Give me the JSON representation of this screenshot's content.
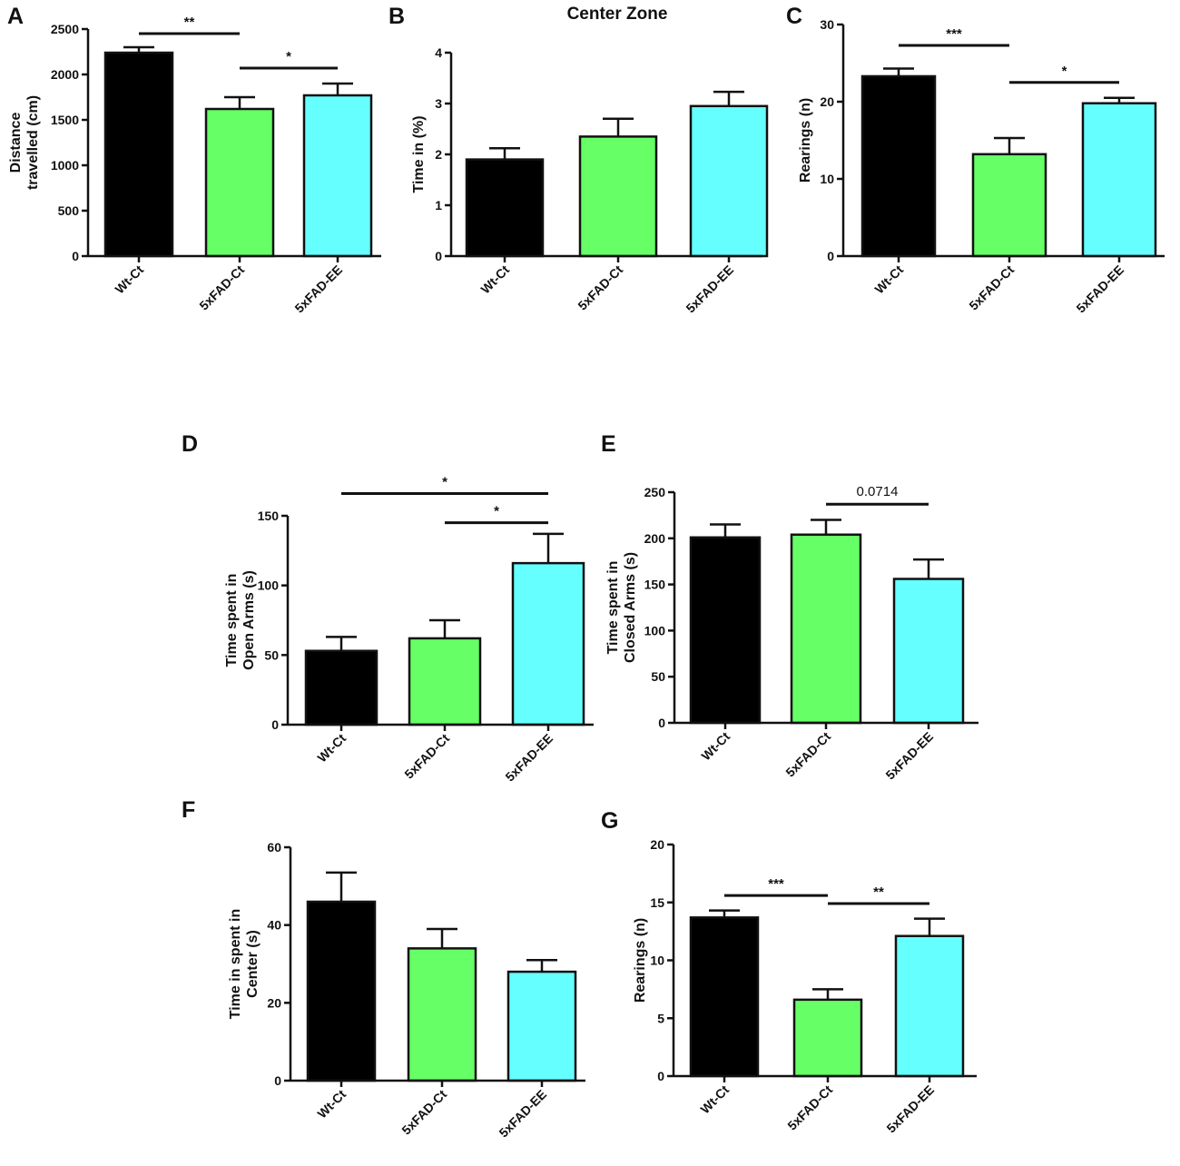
{
  "colors": {
    "Wt-Ct": "#000000",
    "5xFAD-Ct": "#66ff66",
    "5xFAD-EE": "#66ffff",
    "axis": "#111111"
  },
  "chart_data": [
    {
      "panel": "A",
      "type": "bar",
      "title": "",
      "categories": [
        "Wt-Ct",
        "5xFAD-Ct",
        "5xFAD-EE"
      ],
      "values": [
        2240,
        1620,
        1770
      ],
      "errors": [
        60,
        130,
        130
      ],
      "ylabel": [
        "Distance",
        "travelled (cm)"
      ],
      "ylim": [
        0,
        2500
      ],
      "yticks": [
        0,
        500,
        1000,
        1500,
        2000,
        2500
      ],
      "significance": [
        {
          "from": 0,
          "to": 1,
          "label": "**",
          "y": 2450
        },
        {
          "from": 1,
          "to": 2,
          "label": "*",
          "y": 2070
        }
      ]
    },
    {
      "panel": "B",
      "type": "bar",
      "title": "Center Zone",
      "categories": [
        "Wt-Ct",
        "5xFAD-Ct",
        "5xFAD-EE"
      ],
      "values": [
        1.9,
        2.35,
        2.95
      ],
      "errors": [
        0.22,
        0.35,
        0.28
      ],
      "ylabel": [
        "Time in (%)"
      ],
      "ylim": [
        0,
        4
      ],
      "yticks": [
        0,
        1,
        2,
        3,
        4
      ],
      "significance": []
    },
    {
      "panel": "C",
      "type": "bar",
      "title": "",
      "categories": [
        "Wt-Ct",
        "5xFAD-Ct",
        "5xFAD-EE"
      ],
      "values": [
        23.3,
        13.2,
        19.8
      ],
      "errors": [
        1.0,
        2.1,
        0.7
      ],
      "ylabel": [
        "Rearings (n)"
      ],
      "ylim": [
        0,
        30
      ],
      "yticks": [
        0,
        10,
        20,
        30
      ],
      "significance": [
        {
          "from": 0,
          "to": 1,
          "label": "***",
          "y": 27.3
        },
        {
          "from": 1,
          "to": 2,
          "label": "*",
          "y": 22.5
        }
      ]
    },
    {
      "panel": "D",
      "type": "bar",
      "title": "",
      "categories": [
        "Wt-Ct",
        "5xFAD-Ct",
        "5xFAD-EE"
      ],
      "values": [
        53,
        62,
        116
      ],
      "errors": [
        10,
        13,
        21
      ],
      "ylabel": [
        "Time spent in",
        "Open Arms (s)"
      ],
      "ylim": [
        0,
        150
      ],
      "yticks": [
        0,
        50,
        100,
        150
      ],
      "significance": [
        {
          "from": 0,
          "to": 2,
          "label": "*",
          "y": 166
        },
        {
          "from": 1,
          "to": 2,
          "label": "*",
          "y": 145
        }
      ]
    },
    {
      "panel": "E",
      "type": "bar",
      "title": "",
      "categories": [
        "Wt-Ct",
        "5xFAD-Ct",
        "5xFAD-EE"
      ],
      "values": [
        201,
        204,
        156
      ],
      "errors": [
        14,
        16,
        21
      ],
      "ylabel": [
        "Time spent in",
        "Closed Arms (s)"
      ],
      "ylim": [
        0,
        250
      ],
      "yticks": [
        0,
        50,
        100,
        150,
        200,
        250
      ],
      "significance": [
        {
          "from": 1,
          "to": 2,
          "label": "0.0714",
          "y": 237
        }
      ]
    },
    {
      "panel": "F",
      "type": "bar",
      "title": "",
      "categories": [
        "Wt-Ct",
        "5xFAD-Ct",
        "5xFAD-EE"
      ],
      "values": [
        46,
        34,
        28
      ],
      "errors": [
        7.5,
        5,
        3
      ],
      "ylabel": [
        "Time in spent in",
        "Center (s)"
      ],
      "ylim": [
        0,
        60
      ],
      "yticks": [
        0,
        20,
        40,
        60
      ],
      "significance": []
    },
    {
      "panel": "G",
      "type": "bar",
      "title": "",
      "categories": [
        "Wt-Ct",
        "5xFAD-Ct",
        "5xFAD-EE"
      ],
      "values": [
        13.7,
        6.6,
        12.1
      ],
      "errors": [
        0.6,
        0.9,
        1.5
      ],
      "ylabel": [
        "Rearings (n)"
      ],
      "ylim": [
        0,
        20
      ],
      "yticks": [
        0,
        5,
        10,
        15,
        20
      ],
      "significance": [
        {
          "from": 0,
          "to": 1,
          "label": "***",
          "y": 15.6
        },
        {
          "from": 1,
          "to": 2,
          "label": "**",
          "y": 14.9
        }
      ]
    }
  ]
}
